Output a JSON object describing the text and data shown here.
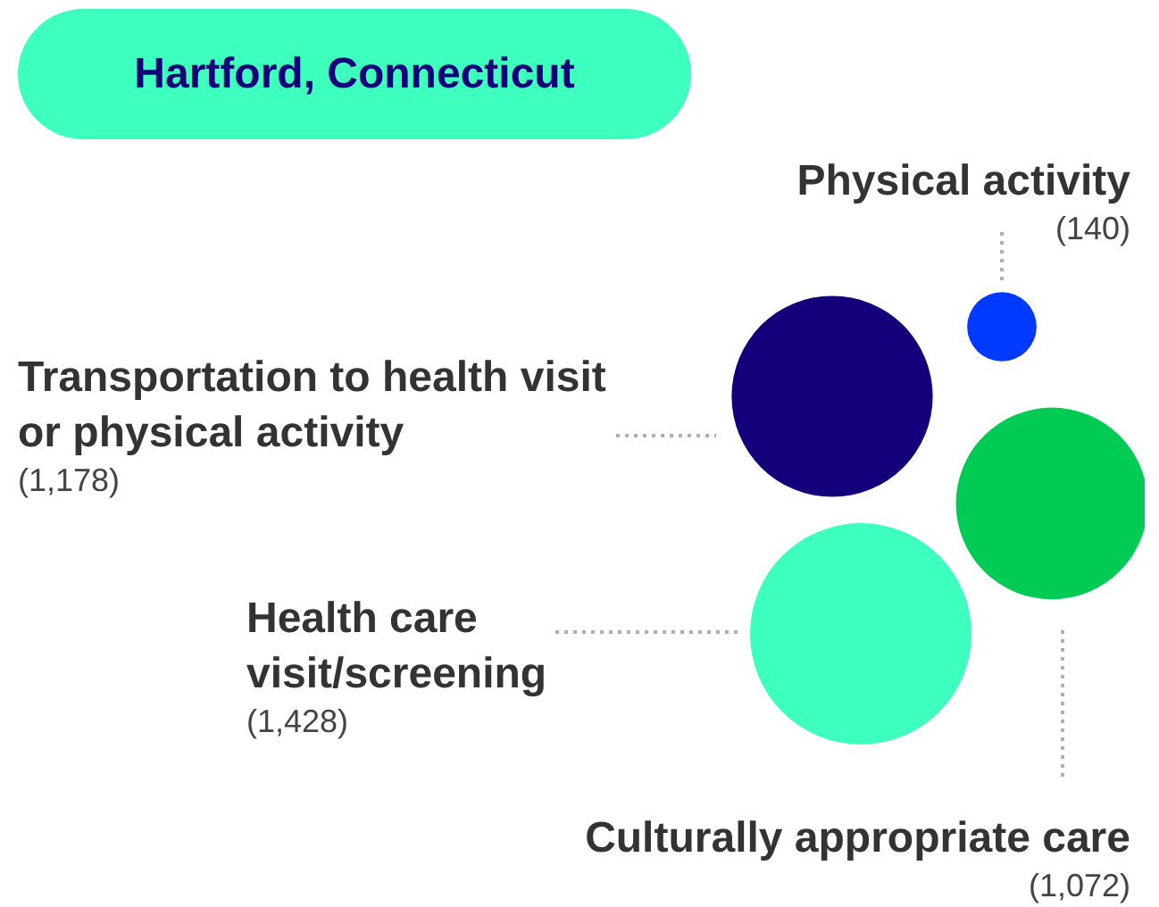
{
  "chart_data": {
    "type": "other",
    "title": "Hartford, Connecticut",
    "categories": [
      "Physical activity",
      "Transportation to health visit or physical activity",
      "Health care visit/screening",
      "Culturally appropriate care"
    ],
    "values": [
      140,
      1178,
      1428,
      1072
    ],
    "value_labels": [
      "(140)",
      "(1,178)",
      "(1,428)",
      "(1,072)"
    ],
    "colors": [
      "#0039ff",
      "#13007a",
      "#3dffbe",
      "#00cc55"
    ]
  }
}
